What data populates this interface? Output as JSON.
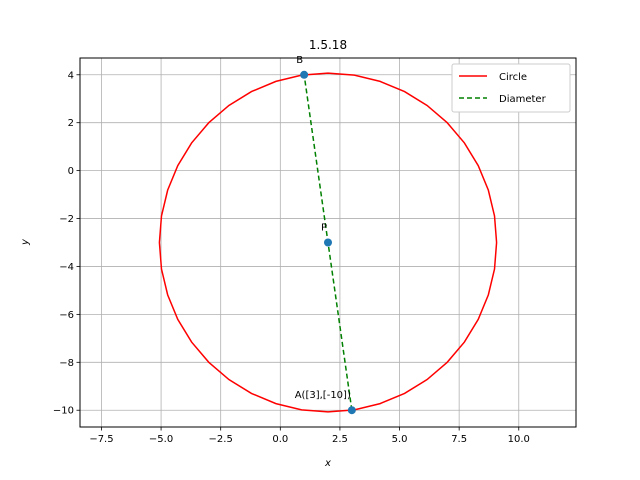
{
  "chart_data": {
    "type": "line",
    "title": "1.5.18",
    "xlabel": "x",
    "ylabel": "y",
    "xlim": [
      -8.4,
      12.4
    ],
    "ylim": [
      -10.7,
      4.7
    ],
    "xticks": [
      -7.5,
      -5.0,
      -2.5,
      0.0,
      2.5,
      5.0,
      7.5,
      10.0
    ],
    "xtick_labels": [
      "−7.5",
      "−5.0",
      "−2.5",
      "0.0",
      "2.5",
      "5.0",
      "7.5",
      "10.0"
    ],
    "yticks": [
      -10,
      -8,
      -6,
      -4,
      -2,
      0,
      2,
      4
    ],
    "ytick_labels": [
      "−10",
      "−8",
      "−6",
      "−4",
      "−2",
      "0",
      "2",
      "4"
    ],
    "grid": true,
    "legend_position": "top-right",
    "series": [
      {
        "name": "Circle",
        "kind": "circle",
        "center": [
          2,
          -3
        ],
        "radius": 7.07,
        "color": "#ff0000",
        "style": "solid"
      },
      {
        "name": "Diameter",
        "kind": "segment",
        "x": [
          3,
          1
        ],
        "y": [
          -10,
          4
        ],
        "color": "#008000",
        "style": "dashed"
      }
    ],
    "points": [
      {
        "label": "B",
        "x": 1,
        "y": 4
      },
      {
        "label": "P",
        "x": 2,
        "y": -3
      },
      {
        "label": "A([3],[-10])",
        "x": 3,
        "y": -10
      }
    ],
    "marker_color": "#1f77b4"
  }
}
